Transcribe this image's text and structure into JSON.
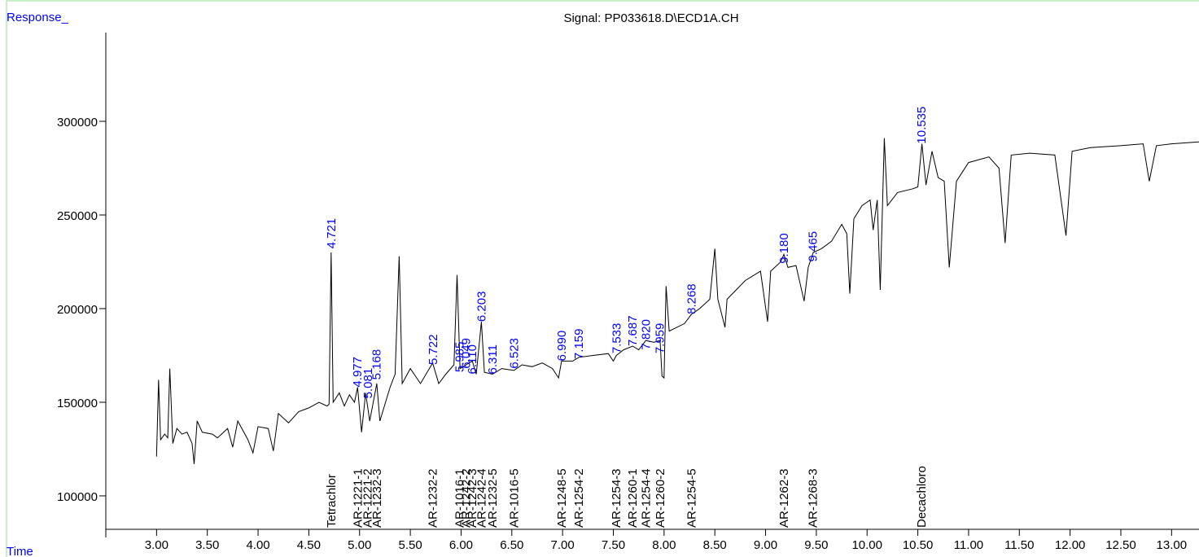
{
  "chart_data": {
    "type": "line",
    "title": "Signal: PP033618.D\\ECD1A.CH",
    "y_label": "Response_",
    "x_label": "Time",
    "xlim": [
      2.5,
      13.27
    ],
    "ylim": [
      77800,
      347400
    ],
    "xticks": [
      {
        "value": 3,
        "label": "3.00"
      },
      {
        "value": 3.5,
        "label": "3.50"
      },
      {
        "value": 4,
        "label": "4.00"
      },
      {
        "value": 4.5,
        "label": "4.50"
      },
      {
        "value": 5,
        "label": "5.00"
      },
      {
        "value": 5.5,
        "label": "5.50"
      },
      {
        "value": 6,
        "label": "6.00"
      },
      {
        "value": 6.5,
        "label": "6.50"
      },
      {
        "value": 7,
        "label": "7.00"
      },
      {
        "value": 7.5,
        "label": "7.50"
      },
      {
        "value": 8,
        "label": "8.00"
      },
      {
        "value": 8.5,
        "label": "8.50"
      },
      {
        "value": 9,
        "label": "9.00"
      },
      {
        "value": 9.5,
        "label": "9.50"
      },
      {
        "value": 10,
        "label": "10.00"
      },
      {
        "value": 10.5,
        "label": "10.50"
      },
      {
        "value": 11,
        "label": "11.00"
      },
      {
        "value": 11.5,
        "label": "11.50"
      },
      {
        "value": 12,
        "label": "12.00"
      },
      {
        "value": 12.5,
        "label": "12.50"
      },
      {
        "value": 13,
        "label": "13.00"
      }
    ],
    "yticks": [
      100000,
      150000,
      200000,
      250000,
      300000
    ],
    "series": [
      {
        "color": "#000000",
        "x": [
          3.0,
          3.02,
          3.04,
          3.08,
          3.11,
          3.13,
          3.16,
          3.2,
          3.25,
          3.3,
          3.35,
          3.37,
          3.4,
          3.45,
          3.55,
          3.6,
          3.7,
          3.75,
          3.8,
          3.9,
          3.95,
          4.0,
          4.1,
          4.15,
          4.2,
          4.3,
          4.4,
          4.5,
          4.6,
          4.68,
          4.7,
          4.72,
          4.74,
          4.8,
          4.85,
          4.9,
          4.95,
          4.98,
          5.02,
          5.06,
          5.1,
          5.17,
          5.2,
          5.3,
          5.35,
          5.39,
          5.42,
          5.5,
          5.6,
          5.72,
          5.78,
          5.85,
          5.93,
          5.96,
          5.99,
          6.05,
          6.11,
          6.15,
          6.2,
          6.23,
          6.31,
          6.4,
          6.52,
          6.6,
          6.7,
          6.8,
          6.9,
          6.96,
          6.99,
          7.1,
          7.16,
          7.3,
          7.45,
          7.5,
          7.53,
          7.6,
          7.69,
          7.75,
          7.82,
          7.9,
          7.96,
          7.98,
          8.0,
          8.02,
          8.05,
          8.2,
          8.27,
          8.35,
          8.45,
          8.5,
          8.53,
          8.6,
          8.62,
          8.8,
          8.95,
          9.02,
          9.05,
          9.15,
          9.18,
          9.22,
          9.3,
          9.38,
          9.42,
          9.47,
          9.55,
          9.65,
          9.75,
          9.8,
          9.83,
          9.87,
          9.95,
          10.03,
          10.06,
          10.1,
          10.13,
          10.17,
          10.2,
          10.3,
          10.45,
          10.5,
          10.54,
          10.58,
          10.64,
          10.7,
          10.76,
          10.81,
          10.88,
          11.0,
          11.2,
          11.3,
          11.36,
          11.42,
          11.6,
          11.85,
          11.96,
          12.02,
          12.2,
          12.5,
          12.72,
          12.78,
          12.85,
          13.0,
          13.27
        ],
        "values": [
          121000,
          162000,
          130000,
          133000,
          131000,
          168000,
          128000,
          136000,
          133000,
          134000,
          128000,
          117000,
          140000,
          134000,
          133000,
          131000,
          136000,
          126000,
          140000,
          130000,
          123000,
          137000,
          136000,
          124000,
          144000,
          139000,
          145000,
          147000,
          150000,
          148000,
          149000,
          230000,
          150000,
          155000,
          148000,
          154000,
          150000,
          158000,
          134000,
          155000,
          140000,
          160000,
          140000,
          158000,
          165000,
          228000,
          160000,
          168000,
          160000,
          171000,
          160000,
          165000,
          170000,
          218000,
          168000,
          170000,
          172000,
          165000,
          193000,
          166000,
          165000,
          168000,
          167000,
          170000,
          169000,
          171000,
          168000,
          163000,
          172000,
          172000,
          174000,
          175000,
          176000,
          172000,
          175000,
          178000,
          180000,
          178000,
          183000,
          182000,
          183000,
          164000,
          163000,
          212000,
          188000,
          192000,
          197000,
          200000,
          205000,
          232000,
          205000,
          190000,
          205000,
          215000,
          220000,
          193000,
          220000,
          225000,
          229000,
          222000,
          223000,
          204000,
          222000,
          230000,
          232000,
          236000,
          245000,
          240000,
          208000,
          248000,
          255000,
          258000,
          242000,
          258000,
          210000,
          291000,
          255000,
          262000,
          264000,
          265000,
          288000,
          266000,
          284000,
          270000,
          268000,
          222000,
          268000,
          278000,
          281000,
          275000,
          235000,
          282000,
          283000,
          282000,
          239000,
          284000,
          286000,
          287000,
          288000,
          268000,
          287000,
          288000,
          289000
        ]
      }
    ],
    "peaks": {
      "color": "#0000ff",
      "x": [
        4.721,
        4.977,
        5.081,
        5.168,
        5.722,
        5.985,
        6.049,
        6.11,
        6.203,
        6.311,
        6.523,
        6.99,
        7.159,
        7.533,
        7.687,
        7.82,
        7.959,
        8.268,
        9.18,
        9.465,
        10.535
      ],
      "values": [
        232000,
        158000,
        152000,
        162000,
        170000,
        166000,
        168000,
        165000,
        193000,
        165000,
        168000,
        172000,
        173000,
        176000,
        180000,
        178000,
        176000,
        197000,
        224000,
        225000,
        288000
      ],
      "value_labels": [
        "4.721",
        "4.977",
        "5.081",
        "5.168",
        "5.722",
        "5.985",
        "6.049",
        "6.110",
        "6.203",
        "6.311",
        "6.523",
        "6.990",
        "7.159",
        "7.533",
        "7.687",
        "7.820",
        "7.959",
        "8.268",
        "9.180",
        "9.465",
        "10.535"
      ]
    },
    "compounds": {
      "x": [
        4.72,
        4.98,
        5.08,
        5.17,
        5.72,
        5.985,
        6.05,
        6.11,
        6.2,
        6.31,
        6.52,
        6.99,
        7.16,
        7.53,
        7.69,
        7.82,
        7.96,
        8.27,
        9.18,
        9.465,
        10.535
      ],
      "labels": [
        "Tetrachlor",
        "AR-1221-1",
        "AR-1221-2",
        "AR-1232-3",
        "AR-1232-2",
        "AR-1016-1",
        "AR-1242-2",
        "AR-1242-3",
        "AR-1242-4",
        "AR-1232-5",
        "AR-1016-5",
        "AR-1248-5",
        "AR-1254-2",
        "AR-1254-3",
        "AR-1260-1",
        "AR-1254-4",
        "AR-1260-2",
        "AR-1254-5",
        "AR-1262-3",
        "AR-1268-3",
        "Decachloro"
      ]
    }
  }
}
